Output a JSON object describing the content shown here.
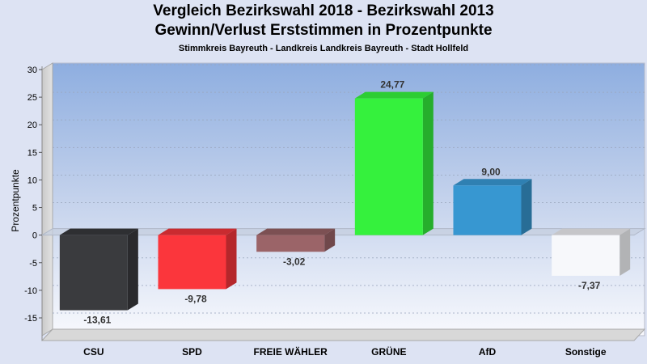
{
  "header": {
    "title": "Vergleich Bezirkswahl 2018 - Bezirkswahl 2013",
    "subtitle": "Gewinn/Verlust Erststimmen in Prozentpunkte",
    "caption": "Stimmkreis Bayreuth - Landkreis Landkreis Bayreuth - Stadt Hollfeld"
  },
  "chart_data": {
    "type": "bar",
    "title": "Vergleich Bezirkswahl 2018 - Bezirkswahl 2013",
    "subtitle": "Gewinn/Verlust Erststimmen in Prozentpunkte",
    "xlabel": "",
    "ylabel": "Prozentpunkte",
    "ylim": [
      -15,
      30
    ],
    "yticks": [
      30,
      25,
      20,
      15,
      10,
      5,
      0,
      -5,
      -10,
      -15
    ],
    "grid": true,
    "categories": [
      "CSU",
      "SPD",
      "FREIE WÄHLER",
      "GRÜNE",
      "AfD",
      "Sonstige"
    ],
    "values": [
      -13.61,
      -9.78,
      -3.02,
      24.77,
      9.0,
      -7.37
    ],
    "value_labels": [
      "-13,61",
      "-9,78",
      "-3,02",
      "24,77",
      "9,00",
      "-7,37"
    ],
    "colors": [
      "#3a3b3e",
      "#fb363c",
      "#9b6468",
      "#35f13d",
      "#3797d1",
      "#f7f8fb"
    ]
  }
}
